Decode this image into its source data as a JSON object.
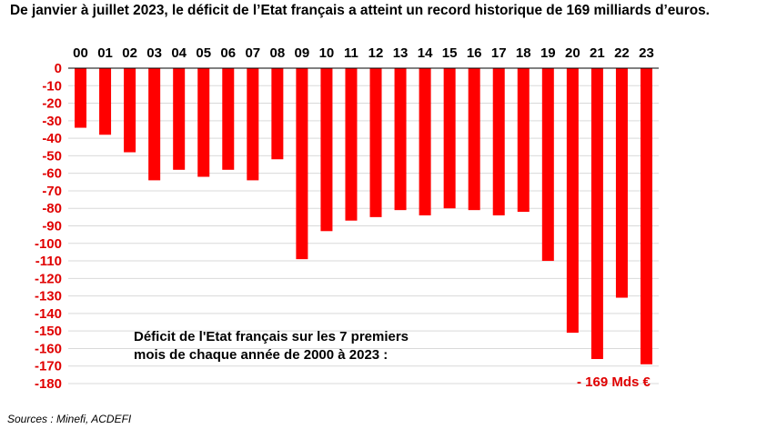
{
  "title": "De janvier à juillet 2023, le déficit de l’Etat français a atteint un record historique de 169 milliards d’euros.",
  "note_line1": "Déficit de l'Etat français sur les 7 premiers",
  "note_line2": "mois de chaque année de 2000 à 2023 :",
  "annotation": "- 169 Mds €",
  "source": "Sources : Minefi, ACDEFI",
  "colors": {
    "bar": "#ff0000",
    "ytick": "#e00000",
    "grid": "#d9d9d9"
  },
  "chart_data": {
    "type": "bar",
    "categories": [
      "00",
      "01",
      "02",
      "03",
      "04",
      "05",
      "06",
      "07",
      "08",
      "09",
      "10",
      "11",
      "12",
      "13",
      "14",
      "15",
      "16",
      "17",
      "18",
      "19",
      "20",
      "21",
      "22",
      "23"
    ],
    "values": [
      -34,
      -38,
      -48,
      -64,
      -58,
      -62,
      -58,
      -64,
      -52,
      -109,
      -93,
      -87,
      -85,
      -81,
      -84,
      -80,
      -81,
      -84,
      -82,
      -110,
      -151,
      -166,
      -131,
      -169
    ],
    "yticks": [
      0,
      -10,
      -20,
      -30,
      -40,
      -50,
      -60,
      -70,
      -80,
      -90,
      -100,
      -110,
      -120,
      -130,
      -140,
      -150,
      -160,
      -170,
      -180
    ],
    "ylim": [
      -180,
      0
    ],
    "x_axis_position": "top",
    "grid": true
  }
}
